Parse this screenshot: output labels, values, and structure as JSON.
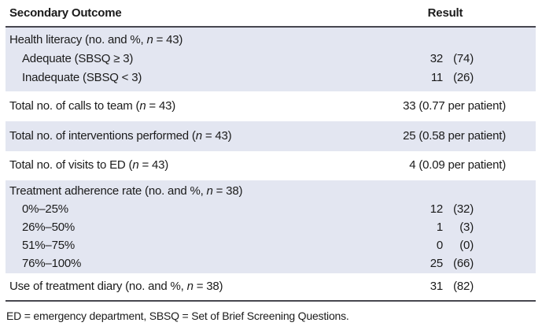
{
  "table": {
    "header": {
      "outcome": "Secondary Outcome",
      "result": "Result"
    },
    "blocks": [
      {
        "rows": [
          {
            "label_pre": "Health literacy (no. and %, ",
            "n": "n",
            "label_post": " = 43)"
          },
          {
            "label_pre": "Adequate (SBSQ ≥ 3)",
            "num": "32",
            "pct": "(74)"
          },
          {
            "label_pre": "Inadequate (SBSQ < 3)",
            "num": "11",
            "pct": "(26)"
          }
        ]
      },
      {
        "rows": [
          {
            "label_pre": "Total no. of calls to team (",
            "n": "n",
            "label_post": " = 43)",
            "result_text": "33 (0.77 per patient)"
          }
        ]
      },
      {
        "rows": [
          {
            "label_pre": "Total no. of interventions performed (",
            "n": "n",
            "label_post": " = 43)",
            "result_text": "25 (0.58 per patient)"
          }
        ]
      },
      {
        "rows": [
          {
            "label_pre": "Total no. of visits to ED (",
            "n": "n",
            "label_post": " = 43)",
            "result_text": "4 (0.09 per patient)"
          }
        ]
      },
      {
        "rows": [
          {
            "label_pre": "Treatment adherence rate (no. and %, ",
            "n": "n",
            "label_post": " = 38)"
          },
          {
            "label_pre": "0%–25%",
            "num": "12",
            "pct": "(32)"
          },
          {
            "label_pre": "26%–50%",
            "num": "1",
            "pct": "(3)"
          },
          {
            "label_pre": "51%–75%",
            "num": "0",
            "pct": "(0)"
          },
          {
            "label_pre": "76%–100%",
            "num": "25",
            "pct": "(66)"
          }
        ]
      },
      {
        "rows": [
          {
            "label_pre": "Use of treatment diary (no. and %, ",
            "n": "n",
            "label_post": " = 38)",
            "num": "31",
            "pct": "(82)"
          }
        ]
      }
    ],
    "footnote": "ED = emergency department, SBSQ = Set of Brief Screening Questions."
  },
  "colors": {
    "row_shade": "#e3e6f1",
    "rule": "#47474f",
    "text": "#1b1b1b"
  }
}
